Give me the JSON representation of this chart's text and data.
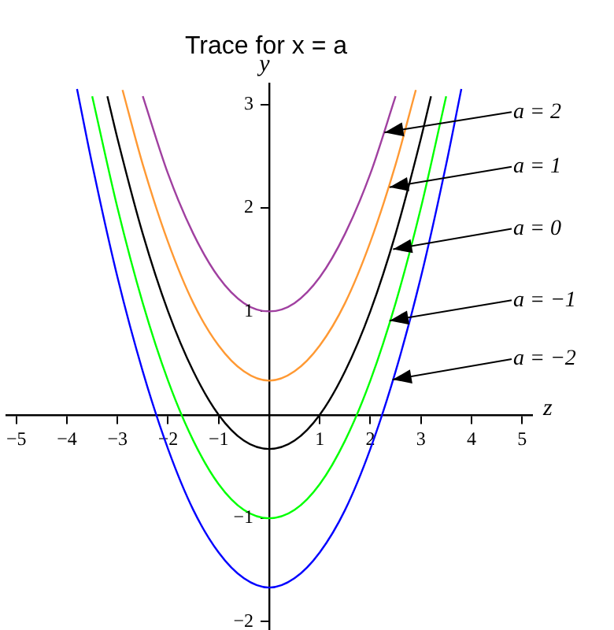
{
  "chart_data": {
    "type": "line",
    "title": "Trace for x = a",
    "xlabel": "z",
    "ylabel": "y",
    "series": [
      {
        "color": "#a040a0",
        "x": [
          -2.5,
          -2,
          -1.5,
          -1,
          -0.5,
          0,
          0.5,
          1,
          1.5,
          2,
          2.5
        ],
        "values": [
          3.08,
          2.33,
          1.75,
          1.33,
          1.08,
          1,
          1.08,
          1.33,
          1.75,
          2.33,
          3.08
        ]
      },
      {
        "color": "#ff9933",
        "x": [
          -2.9,
          -2.5,
          -2,
          -1.5,
          -1,
          -0.5,
          0,
          0.5,
          1,
          1.5,
          2,
          2.5,
          2.9
        ],
        "values": [
          3.14,
          2.42,
          1.67,
          1.08,
          0.67,
          0.42,
          0.33,
          0.42,
          0.67,
          1.08,
          1.67,
          2.42,
          3.14
        ]
      },
      {
        "color": "#000000",
        "x": [
          -3.2,
          -3,
          -2.5,
          -2,
          -1.5,
          -1,
          -0.5,
          0,
          0.5,
          1,
          1.5,
          2,
          2.5,
          3,
          3.2
        ],
        "values": [
          3.08,
          2.67,
          1.75,
          1,
          0.42,
          0,
          -0.25,
          -0.33,
          -0.25,
          0,
          0.42,
          1,
          1.75,
          2.67,
          3.08
        ]
      },
      {
        "color": "#00ff00",
        "x": [
          -3.5,
          -3,
          -2.5,
          -2,
          -1.5,
          -1,
          -0.5,
          0,
          0.5,
          1,
          1.5,
          2,
          2.5,
          3,
          3.5
        ],
        "values": [
          3.08,
          2,
          1.08,
          0.33,
          -0.25,
          -0.67,
          -0.92,
          -1,
          -0.92,
          -0.67,
          -0.25,
          0.33,
          1.08,
          2,
          3.08
        ]
      },
      {
        "color": "#0000ff",
        "x": [
          -3.8,
          -3.5,
          -3,
          -2.5,
          -2,
          -1.5,
          -1,
          -0.5,
          0,
          0.5,
          1,
          1.5,
          2,
          2.5,
          3,
          3.5,
          3.8
        ],
        "values": [
          3.15,
          2.42,
          1.33,
          0.42,
          -0.33,
          -0.92,
          -1.33,
          -1.58,
          -1.67,
          -1.58,
          -1.33,
          -0.92,
          -0.33,
          0.42,
          1.33,
          2.42,
          3.15
        ]
      }
    ],
    "annotations": [
      {
        "text": "a = 2",
        "x": 2.28,
        "y": 2.73
      },
      {
        "text": "a = 1",
        "x": 2.38,
        "y": 2.2
      },
      {
        "text": "a = 0",
        "x": 2.45,
        "y": 1.6
      },
      {
        "text": "a = −1",
        "x": 2.38,
        "y": 0.91
      },
      {
        "text": "a = −2",
        "x": 2.44,
        "y": 0.34
      }
    ],
    "xlim": [
      -5.2,
      5.2
    ],
    "ylim": [
      -2.08,
      3.2
    ],
    "xticks": [
      {
        "value": -5,
        "label": "−5"
      },
      {
        "value": -4,
        "label": "−4"
      },
      {
        "value": -3,
        "label": "−3"
      },
      {
        "value": -2,
        "label": "−2"
      },
      {
        "value": -1,
        "label": "−1"
      },
      1,
      2,
      3,
      4,
      5
    ],
    "yticks": [
      {
        "value": -2,
        "label": "−2"
      },
      {
        "value": -1,
        "label": "−1"
      },
      1,
      2,
      3
    ],
    "legend": false,
    "marker": "none",
    "line_style": "solid"
  }
}
